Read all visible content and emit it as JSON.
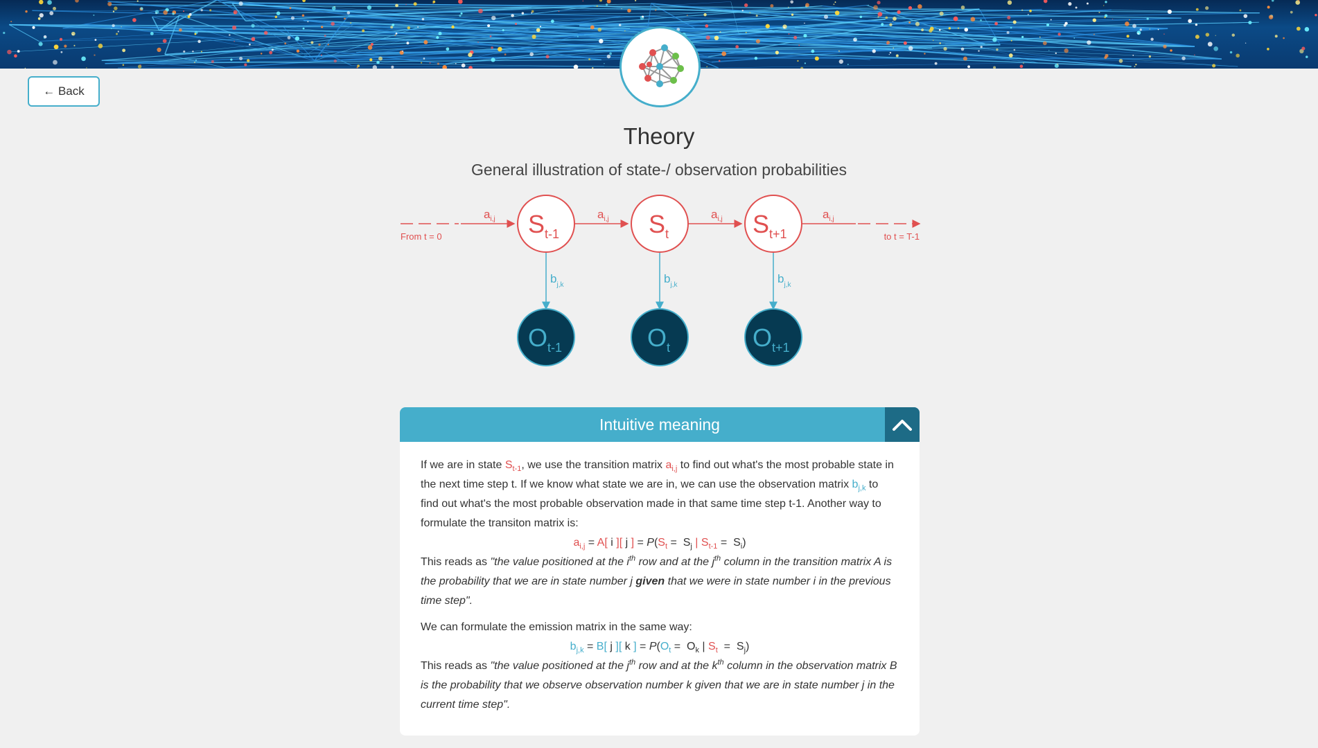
{
  "nav": {
    "back_label": "← Back"
  },
  "page": {
    "title": "Theory",
    "subtitle": "General illustration of state-/ observation probabilities"
  },
  "diagram": {
    "start_label": "From t = 0",
    "end_label": "to t = T-1",
    "transition_label": "a",
    "transition_sub": "i,j",
    "emission_label": "b",
    "emission_sub": "j,k",
    "states": [
      {
        "main": "S",
        "sub": "t-1"
      },
      {
        "main": "S",
        "sub": "t"
      },
      {
        "main": "S",
        "sub": "t+1"
      }
    ],
    "observations": [
      {
        "main": "O",
        "sub": "t-1"
      },
      {
        "main": "O",
        "sub": "t"
      },
      {
        "main": "O",
        "sub": "t+1"
      }
    ]
  },
  "card": {
    "title": "Intuitive meaning",
    "collapse_icon": "chevron-up-icon"
  },
  "colors": {
    "accent": "#45aecb",
    "state_red": "#e05050",
    "observation_fill": "#063a52",
    "collapse_bg": "#1d6b86"
  }
}
